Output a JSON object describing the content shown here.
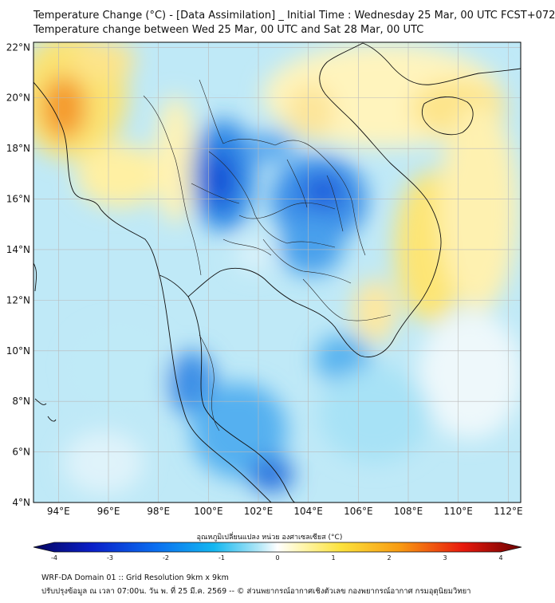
{
  "title_line1": "Temperature Change (°C) - [Data Assimilation] _ Initial Time : Wednesday 25 Mar, 00 UTC FCST+072",
  "title_line2": "Temperature change between Wed 25 Mar, 00 UTC and Sat 28 Mar, 00 UTC",
  "map": {
    "lon_range": [
      93,
      112.5
    ],
    "lat_range": [
      4,
      22.2
    ],
    "lon_ticks": [
      "94°E",
      "96°E",
      "98°E",
      "100°E",
      "102°E",
      "104°E",
      "106°E",
      "108°E",
      "110°E",
      "112°E"
    ],
    "lat_ticks": [
      "22°N",
      "20°N",
      "18°N",
      "16°N",
      "14°N",
      "12°N",
      "10°N",
      "8°N",
      "6°N",
      "4°N"
    ]
  },
  "colorbar": {
    "title": "อุณหภูมิเปลี่ยนแปลง หน่วย องศาเซลเซียส (°C)",
    "ticks": [
      "-4",
      "-3",
      "-2",
      "-1",
      "0",
      "1",
      "2",
      "3",
      "4"
    ],
    "min": -4,
    "max": 4
  },
  "footer_line1": "WRF-DA Domain 01 :: Grid Resolution 9km x 9km",
  "footer_line2": "ปรับปรุงข้อมูล ณ เวลา 07:00น. วัน พ. ที่ 25 มี.ค. 2569 -- © ส่วนพยากรณ์อากาศเชิงตัวเลข กองพยากรณ์อากาศ กรมอุตุนิยมวิทยา"
}
